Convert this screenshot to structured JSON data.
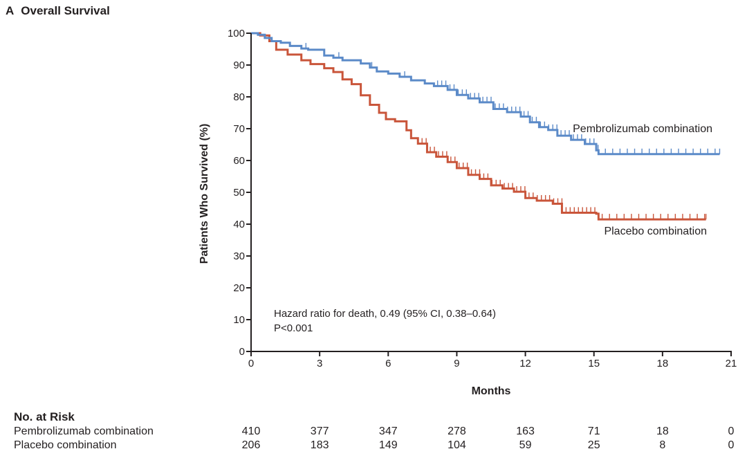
{
  "panel": {
    "letter": "A",
    "title": "Overall Survival"
  },
  "chart_data": {
    "type": "line",
    "subtype": "kaplan-meier",
    "title": "Overall Survival",
    "xlabel": "Months",
    "ylabel": "Patients Who Survived (%)",
    "xlim": [
      0,
      21
    ],
    "ylim": [
      0,
      100
    ],
    "xticks": [
      0,
      3,
      6,
      9,
      12,
      15,
      18,
      21
    ],
    "yticks": [
      0,
      10,
      20,
      30,
      40,
      50,
      60,
      70,
      80,
      90,
      100
    ],
    "grid": false,
    "series": [
      {
        "name": "Pembrolizumab combination",
        "color": "#5b8ac8",
        "points": [
          [
            0,
            100
          ],
          [
            0.3,
            99.5
          ],
          [
            0.6,
            98.5
          ],
          [
            0.9,
            97.5
          ],
          [
            1.3,
            97
          ],
          [
            1.7,
            96
          ],
          [
            2.2,
            95.2
          ],
          [
            2.5,
            94.8
          ],
          [
            3.2,
            93
          ],
          [
            3.6,
            92.3
          ],
          [
            4.0,
            91.5
          ],
          [
            4.8,
            90.5
          ],
          [
            5.2,
            89.2
          ],
          [
            5.5,
            88
          ],
          [
            6.0,
            87.3
          ],
          [
            6.5,
            86.3
          ],
          [
            7.0,
            85.2
          ],
          [
            7.6,
            84.2
          ],
          [
            8.0,
            83.4
          ],
          [
            8.6,
            82.2
          ],
          [
            9.0,
            80.6
          ],
          [
            9.5,
            79.5
          ],
          [
            10.0,
            78.3
          ],
          [
            10.6,
            76.2
          ],
          [
            11.2,
            75.2
          ],
          [
            11.8,
            73.8
          ],
          [
            12.2,
            72
          ],
          [
            12.6,
            70.5
          ],
          [
            13.0,
            69.6
          ],
          [
            13.4,
            67.8
          ],
          [
            14.0,
            66.5
          ],
          [
            14.6,
            65.2
          ],
          [
            15.1,
            63.2
          ],
          [
            15.2,
            62
          ],
          [
            20.5,
            62
          ]
        ],
        "label_position": "right, above curve"
      },
      {
        "name": "Placebo combination",
        "color": "#c9553a",
        "points": [
          [
            0,
            100
          ],
          [
            0.4,
            99.3
          ],
          [
            0.8,
            97.5
          ],
          [
            1.1,
            94.8
          ],
          [
            1.6,
            93.3
          ],
          [
            2.2,
            91.5
          ],
          [
            2.6,
            90.3
          ],
          [
            3.2,
            89
          ],
          [
            3.6,
            87.8
          ],
          [
            4.0,
            85.5
          ],
          [
            4.4,
            84
          ],
          [
            4.8,
            80.5
          ],
          [
            5.2,
            77.5
          ],
          [
            5.6,
            75
          ],
          [
            5.9,
            73
          ],
          [
            6.3,
            72.3
          ],
          [
            6.6,
            72.3
          ],
          [
            6.8,
            69.5
          ],
          [
            7.0,
            67
          ],
          [
            7.3,
            65.3
          ],
          [
            7.7,
            62.6
          ],
          [
            8.1,
            61.2
          ],
          [
            8.6,
            59.5
          ],
          [
            9.0,
            57.6
          ],
          [
            9.5,
            55.5
          ],
          [
            10.0,
            54.2
          ],
          [
            10.5,
            52.2
          ],
          [
            11.0,
            51.2
          ],
          [
            11.5,
            50.2
          ],
          [
            12.0,
            48.2
          ],
          [
            12.5,
            47.4
          ],
          [
            13.2,
            46.4
          ],
          [
            13.6,
            43.6
          ],
          [
            15.1,
            43.3
          ],
          [
            15.2,
            41.5
          ],
          [
            19.9,
            41.5
          ]
        ],
        "label_position": "right, below curve"
      }
    ],
    "annotations": [
      "Hazard ratio for death, 0.49 (95% CI, 0.38–0.64)",
      "P<0.001"
    ]
  },
  "axes": {
    "x_ticks": [
      "0",
      "3",
      "6",
      "9",
      "12",
      "15",
      "18",
      "21"
    ],
    "y_ticks": [
      "0",
      "10",
      "20",
      "30",
      "40",
      "50",
      "60",
      "70",
      "80",
      "90",
      "100"
    ],
    "xlabel": "Months",
    "ylabel": "Patients Who Survived (%)"
  },
  "legend": {
    "pembro": "Pembrolizumab combination",
    "placebo": "Placebo combination"
  },
  "annotation": {
    "hr": "Hazard ratio for death, 0.49 (95% CI, 0.38–0.64)",
    "p": "P<0.001"
  },
  "risk_table": {
    "title": "No. at Risk",
    "rows": [
      {
        "name": "Pembrolizumab combination",
        "values": [
          "410",
          "377",
          "347",
          "278",
          "163",
          "71",
          "18",
          "0"
        ]
      },
      {
        "name": "Placebo combination",
        "values": [
          "206",
          "183",
          "149",
          "104",
          "59",
          "25",
          "8",
          "0"
        ]
      }
    ]
  }
}
